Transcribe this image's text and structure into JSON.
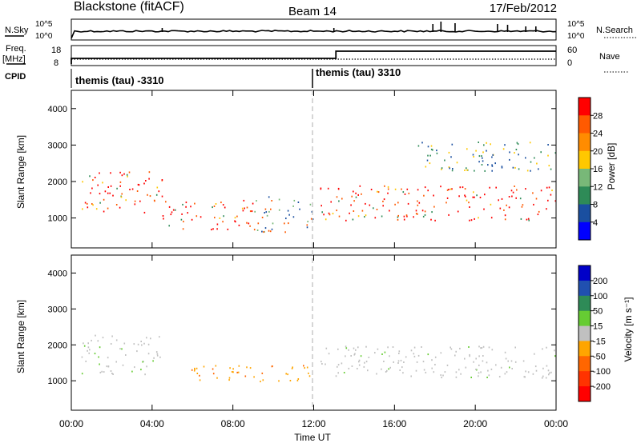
{
  "header": {
    "station": "Blackstone (fitACF)",
    "beam": "Beam 14",
    "date": "17/Feb/2012"
  },
  "sky_panel": {
    "left_label": "N.Sky",
    "right_label": "N.Search",
    "ticks": [
      "10^5",
      "10^0"
    ]
  },
  "freq_panel": {
    "left_label_1": "Freq.",
    "left_label_2": "[MHz]",
    "left_ticks": [
      "18",
      "8"
    ],
    "right_label": "Nave",
    "right_ticks": [
      "60",
      "0"
    ]
  },
  "cpid": {
    "label": "CPID",
    "modes": [
      "themis (tau) -3310",
      "themis (tau) 3310"
    ]
  },
  "power_colorbar": {
    "title": "Power [dB]",
    "ticks": [
      "28",
      "24",
      "20",
      "16",
      "12",
      "8",
      "4"
    ],
    "colors": [
      "#ff0000",
      "#ff5a00",
      "#ff8c00",
      "#ffc800",
      "#78b878",
      "#2e8b57",
      "#1a4fa0",
      "#0000ff"
    ]
  },
  "velocity_colorbar": {
    "title": "Velocity [m s⁻¹]",
    "ticks": [
      "200",
      "100",
      "50",
      "15",
      "-15",
      "-50",
      "-100",
      "-200"
    ],
    "colors": [
      "#0000c8",
      "#2050b0",
      "#2e8b57",
      "#66cc33",
      "#c0c0c0",
      "#ffa500",
      "#ff6600",
      "#ff3300",
      "#ff0000"
    ]
  },
  "chart_data": [
    {
      "type": "heatmap",
      "name": "power",
      "ylabel": "Slant Range [km]",
      "ylim": [
        180,
        4500
      ],
      "yticks": [
        1000,
        2000,
        3000,
        4000
      ],
      "x_range": [
        0,
        24
      ],
      "bands": [
        {
          "t": [
            0.5,
            4.5
          ],
          "r": [
            1150,
            2300
          ],
          "level": "strong"
        },
        {
          "t": [
            4.5,
            9.0
          ],
          "r": [
            700,
            1500
          ],
          "level": "strong"
        },
        {
          "t": [
            9.0,
            12.0
          ],
          "r": [
            600,
            1600
          ],
          "level": "medium"
        },
        {
          "t": [
            12.3,
            24
          ],
          "r": [
            950,
            1900
          ],
          "level": "strong"
        },
        {
          "t": [
            17.0,
            24
          ],
          "r": [
            2300,
            3100
          ],
          "level": "weak"
        }
      ]
    },
    {
      "type": "heatmap",
      "name": "velocity",
      "ylabel": "Slant Range [km]",
      "xlabel": "Time UT",
      "ylim": [
        180,
        4500
      ],
      "yticks": [
        1000,
        2000,
        3000,
        4000
      ],
      "xticks": [
        "00:00",
        "04:00",
        "08:00",
        "12:00",
        "16:00",
        "20:00",
        "00:00"
      ],
      "bands": [
        {
          "t": [
            0.5,
            4.5
          ],
          "r": [
            1150,
            2300
          ],
          "class": "ground"
        },
        {
          "t": [
            5.5,
            11.8
          ],
          "r": [
            1000,
            1450
          ],
          "class": "negative"
        },
        {
          "t": [
            12.3,
            24
          ],
          "r": [
            1100,
            2000
          ],
          "class": "ground"
        }
      ]
    }
  ]
}
